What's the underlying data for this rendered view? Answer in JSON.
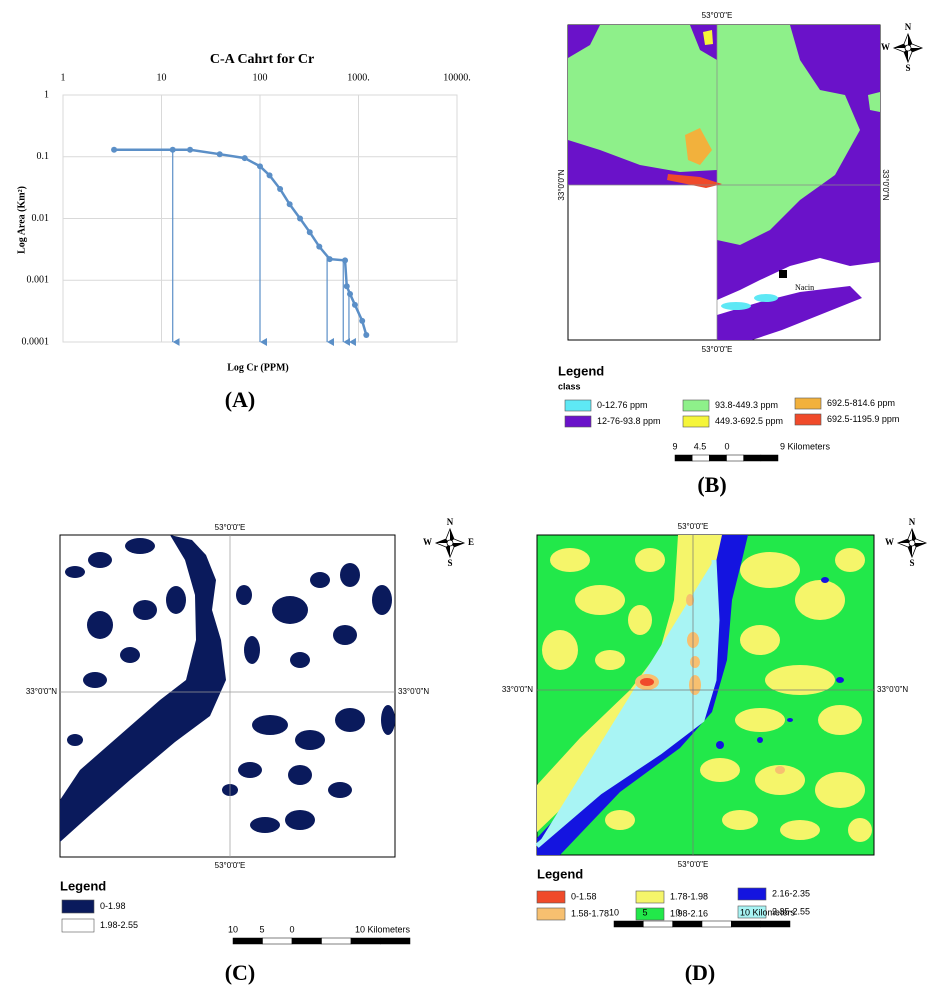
{
  "chart_data": {
    "type": "line",
    "title": "C-A Cahrt for Cr",
    "x_label": "Log Cr (PPM)",
    "y_label": "Log Area (Km²)",
    "x": [
      3.3,
      13,
      19.5,
      39,
      70,
      100,
      125,
      160,
      200,
      255,
      320,
      400,
      510,
      730,
      760,
      820,
      920,
      1090,
      1200
    ],
    "values": [
      0.13,
      0.13,
      0.13,
      0.11,
      0.095,
      0.07,
      0.05,
      0.03,
      0.017,
      0.01,
      0.006,
      0.0035,
      0.0022,
      0.0021,
      0.0008,
      0.0006,
      0.0004,
      0.00022,
      0.00013
    ],
    "thresholds": [
      13,
      100,
      480,
      700,
      800
    ],
    "color": "#5b8fc7",
    "log_x": true,
    "log_y": true,
    "grid": true,
    "xlim": [
      1,
      10000
    ],
    "xticks": [
      1,
      10,
      100,
      {
        "value": 1000,
        "label": "1000."
      },
      {
        "value": 10000,
        "label": "10000."
      }
    ],
    "ylim": [
      0.0001,
      1
    ],
    "yticks": [
      1,
      0.1,
      0.01,
      0.001,
      0.0001
    ]
  },
  "panel_labels": [
    "(A)",
    "(B)",
    "(C)",
    "(D)"
  ],
  "compass": {
    "n": "N",
    "s": "S",
    "w": "W",
    "e": "E"
  },
  "panels": {
    "b": {
      "lon_label": "53°0'0\"E",
      "lat_label": "33°0'0\"N",
      "place": "Nacin",
      "legend_title": "Legend",
      "legend_subtitle": "class",
      "legend": [
        {
          "label": "0-12.76 ppm",
          "color": "#5ee8f5"
        },
        {
          "label": "12-76-93.8 ppm",
          "color": "#6a12c9"
        },
        {
          "label": "93.8-449.3 ppm",
          "color": "#8ef08a"
        },
        {
          "label": "449.3-692.5 ppm",
          "color": "#f5f53a"
        },
        {
          "label": "692.5-814.6 ppm",
          "color": "#f2b13c"
        },
        {
          "label": "692.5-1195.9 ppm",
          "color": "#f04a2a"
        }
      ],
      "scale": [
        "9",
        "4.5",
        "0",
        "9 Kilometers"
      ]
    },
    "c": {
      "lon_label": "53°0'0\"E",
      "lat_label": "33°0'0\"N",
      "legend_title": "Legend",
      "legend": [
        {
          "label": "0-1.98",
          "color": "#0a1a5c"
        },
        {
          "label": "1.98-2.55",
          "color": "#ffffff"
        }
      ],
      "scale": [
        "10",
        "5",
        "0",
        "10 Kilometers"
      ]
    },
    "d": {
      "lon_label": "53°0'0\"E",
      "lat_label": "33°0'0\"N",
      "legend_title": "Legend",
      "legend": [
        {
          "label": "0-1.58",
          "color": "#f04a2a"
        },
        {
          "label": "1.58-1.78",
          "color": "#f7c070"
        },
        {
          "label": "1.78-1.98",
          "color": "#f5f56a"
        },
        {
          "label": "1.98-2.16",
          "color": "#22e84a"
        },
        {
          "label": "2.16-2.35",
          "color": "#1414e0"
        },
        {
          "label": "2.35-2.55",
          "color": "#a8f4f4"
        }
      ],
      "scale": [
        "10",
        "5",
        "0",
        "10 Kilometers"
      ]
    }
  }
}
